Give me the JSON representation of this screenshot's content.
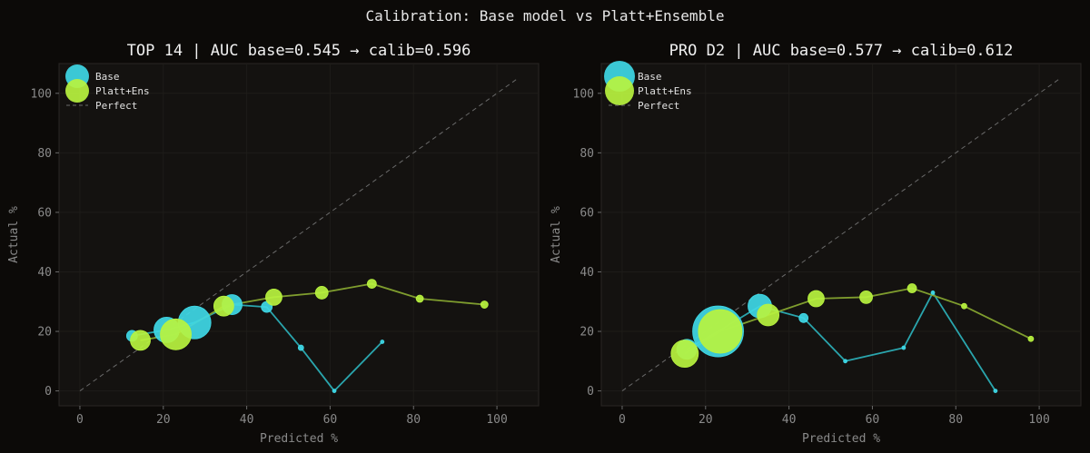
{
  "figure": {
    "suptitle": "Calibration: Base model vs Platt+Ensemble"
  },
  "colors": {
    "background": "#0c0a08",
    "axes_bg": "#141210",
    "base": "#3fd8e6",
    "base_line": "#2aa5ad",
    "calib": "#b8f33f",
    "calib_line": "#7f9d2e",
    "perfect": "#6a6a6a"
  },
  "chart_data": [
    {
      "type": "scatter",
      "title": "TOP 14 | AUC base=0.545 → calib=0.596",
      "xlabel": "Predicted %",
      "ylabel": "Actual %",
      "xlim": [
        -5,
        110
      ],
      "ylim": [
        -5,
        110
      ],
      "xticks": [
        0,
        20,
        40,
        60,
        80,
        100
      ],
      "yticks": [
        0,
        20,
        40,
        60,
        80,
        100
      ],
      "legend": {
        "position": "top-left",
        "labels": [
          "Base",
          "Platt+Ens",
          "Perfect"
        ]
      },
      "perfect_line": {
        "x": [
          0,
          105
        ],
        "y": [
          0,
          105
        ]
      },
      "series": [
        {
          "name": "Base",
          "points": [
            {
              "x": 12.5,
              "y": 18.5,
              "size": 6
            },
            {
              "x": 20.8,
              "y": 20.5,
              "size": 14
            },
            {
              "x": 27.5,
              "y": 23.0,
              "size": 18
            },
            {
              "x": 36.5,
              "y": 29.0,
              "size": 11
            },
            {
              "x": 44.8,
              "y": 28.2,
              "size": 6
            },
            {
              "x": 53.0,
              "y": 14.5,
              "size": 3
            },
            {
              "x": 61.0,
              "y": 0.0,
              "size": 2
            },
            {
              "x": 72.5,
              "y": 16.5,
              "size": 2
            }
          ]
        },
        {
          "name": "Platt+Ens",
          "points": [
            {
              "x": 14.5,
              "y": 17.0,
              "size": 11
            },
            {
              "x": 23.0,
              "y": 19.0,
              "size": 17
            },
            {
              "x": 34.5,
              "y": 28.5,
              "size": 11
            },
            {
              "x": 46.5,
              "y": 31.5,
              "size": 9
            },
            {
              "x": 58.0,
              "y": 33.0,
              "size": 7
            },
            {
              "x": 70.0,
              "y": 36.0,
              "size": 5
            },
            {
              "x": 81.5,
              "y": 31.0,
              "size": 4
            },
            {
              "x": 97.0,
              "y": 29.0,
              "size": 4
            }
          ]
        }
      ]
    },
    {
      "type": "scatter",
      "title": "PRO D2 | AUC base=0.577 → calib=0.612",
      "xlabel": "Predicted %",
      "ylabel": "Actual %",
      "xlim": [
        -5,
        110
      ],
      "ylim": [
        -5,
        110
      ],
      "xticks": [
        0,
        20,
        40,
        60,
        80,
        100
      ],
      "yticks": [
        0,
        20,
        40,
        60,
        80,
        100
      ],
      "legend": {
        "position": "top-left",
        "labels": [
          "Base",
          "Platt+Ens",
          "Perfect"
        ]
      },
      "perfect_line": {
        "x": [
          0,
          105
        ],
        "y": [
          0,
          105
        ]
      },
      "series": [
        {
          "name": "Base",
          "points": [
            {
              "x": 15.5,
              "y": 14.0,
              "size": 11
            },
            {
              "x": 23.0,
              "y": 20.0,
              "size": 28
            },
            {
              "x": 33.0,
              "y": 28.5,
              "size": 13
            },
            {
              "x": 43.5,
              "y": 24.5,
              "size": 5
            },
            {
              "x": 53.5,
              "y": 10.0,
              "size": 2
            },
            {
              "x": 67.5,
              "y": 14.5,
              "size": 2
            },
            {
              "x": 74.5,
              "y": 33.0,
              "size": 2
            },
            {
              "x": 89.5,
              "y": 0.0,
              "size": 2
            }
          ]
        },
        {
          "name": "Platt+Ens",
          "points": [
            {
              "x": 15.0,
              "y": 12.5,
              "size": 15
            },
            {
              "x": 23.5,
              "y": 20.0,
              "size": 24
            },
            {
              "x": 35.0,
              "y": 25.5,
              "size": 12
            },
            {
              "x": 46.5,
              "y": 31.0,
              "size": 9
            },
            {
              "x": 58.5,
              "y": 31.5,
              "size": 7
            },
            {
              "x": 69.5,
              "y": 34.5,
              "size": 5
            },
            {
              "x": 82.0,
              "y": 28.5,
              "size": 3
            },
            {
              "x": 98.0,
              "y": 17.5,
              "size": 3
            }
          ]
        }
      ]
    }
  ]
}
